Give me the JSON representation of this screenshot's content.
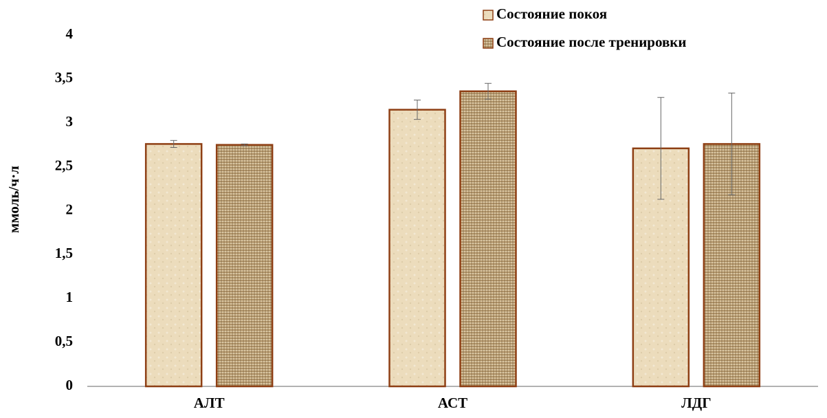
{
  "chart_data": {
    "type": "bar",
    "y_label": "ммоль/ч·л",
    "categories": [
      "АЛТ",
      "АСТ",
      "ЛДГ"
    ],
    "series": [
      {
        "name": "Состояние покоя",
        "color": "#ecdcbc",
        "values": [
          2.76,
          3.15,
          2.71
        ],
        "errors": [
          0.04,
          0.11,
          0.58
        ]
      },
      {
        "name": "Состояние после тренировки",
        "color": "#b3966a",
        "values": [
          2.75,
          3.36,
          2.76
        ],
        "errors": [
          0.01,
          0.09,
          0.58
        ]
      }
    ],
    "edgecolor": "#8e3f14",
    "ylim": [
      0,
      4
    ],
    "yticks": [
      0,
      {
        "value": 0.5,
        "label": "0,5"
      },
      1,
      {
        "value": 1.5,
        "label": "1,5"
      },
      2,
      {
        "value": 2.5,
        "label": "2,5"
      },
      3,
      {
        "value": 3.5,
        "label": "3,5"
      },
      4
    ],
    "grid": false,
    "legend": "upper right"
  }
}
